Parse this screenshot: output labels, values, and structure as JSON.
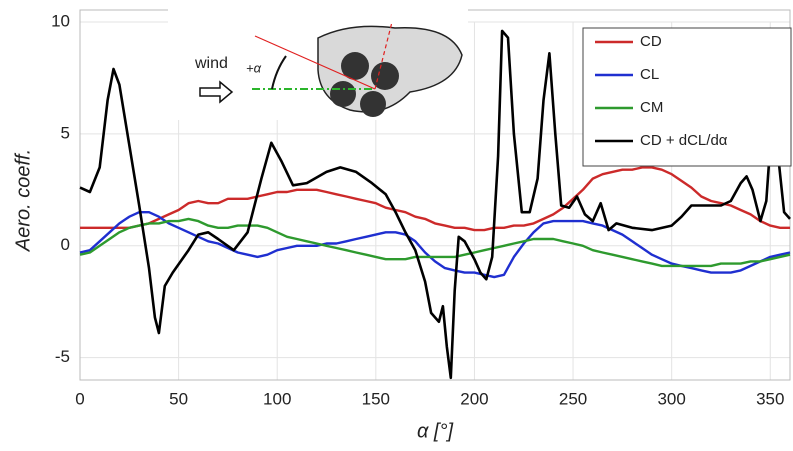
{
  "chart_data": {
    "type": "line",
    "x_label": "α [°]",
    "y_label": "Aero. coeff.",
    "xlim": [
      0,
      360
    ],
    "ylim": [
      -6,
      10
    ],
    "xticks": [
      0,
      50,
      100,
      150,
      200,
      250,
      300,
      350
    ],
    "yticks": [
      -5,
      0,
      5,
      10
    ],
    "grid": true,
    "legend": "upper right",
    "inset_labels": [
      "wind",
      "+α"
    ],
    "x": [
      0,
      5,
      10,
      15,
      20,
      25,
      30,
      35,
      40,
      45,
      50,
      55,
      60,
      65,
      70,
      75,
      80,
      85,
      90,
      95,
      100,
      105,
      110,
      115,
      120,
      125,
      130,
      135,
      140,
      145,
      150,
      155,
      160,
      165,
      170,
      175,
      180,
      185,
      190,
      195,
      200,
      205,
      210,
      215,
      220,
      225,
      230,
      235,
      240,
      245,
      250,
      255,
      260,
      265,
      270,
      275,
      280,
      285,
      290,
      295,
      300,
      305,
      310,
      315,
      320,
      325,
      330,
      335,
      340,
      345,
      350,
      355,
      360
    ],
    "series": [
      {
        "name": "CD",
        "color": "#cc2a2a",
        "values": [
          0.8,
          0.8,
          0.8,
          0.8,
          0.8,
          0.8,
          0.9,
          1.0,
          1.2,
          1.4,
          1.6,
          1.9,
          2.0,
          1.9,
          1.9,
          2.1,
          2.1,
          2.1,
          2.2,
          2.3,
          2.4,
          2.4,
          2.5,
          2.5,
          2.5,
          2.4,
          2.3,
          2.2,
          2.1,
          2.0,
          1.9,
          1.7,
          1.6,
          1.5,
          1.3,
          1.2,
          1.0,
          0.9,
          0.8,
          0.8,
          0.7,
          0.7,
          0.8,
          0.8,
          0.9,
          0.9,
          1.0,
          1.2,
          1.4,
          1.7,
          2.1,
          2.5,
          3.0,
          3.2,
          3.3,
          3.4,
          3.4,
          3.5,
          3.5,
          3.4,
          3.2,
          2.9,
          2.6,
          2.2,
          2.0,
          1.9,
          1.8,
          1.6,
          1.4,
          1.1,
          0.9,
          0.8,
          0.8
        ]
      },
      {
        "name": "CL",
        "color": "#1f2fd0",
        "values": [
          -0.3,
          -0.2,
          0.2,
          0.6,
          1.0,
          1.3,
          1.5,
          1.5,
          1.3,
          1.0,
          0.8,
          0.6,
          0.4,
          0.2,
          0.1,
          -0.1,
          -0.3,
          -0.4,
          -0.5,
          -0.4,
          -0.2,
          -0.1,
          0.0,
          0.0,
          0.0,
          0.1,
          0.1,
          0.2,
          0.3,
          0.4,
          0.5,
          0.6,
          0.6,
          0.5,
          0.2,
          -0.3,
          -0.7,
          -1.0,
          -1.1,
          -1.2,
          -1.2,
          -1.3,
          -1.4,
          -1.3,
          -0.5,
          0.1,
          0.6,
          1.0,
          1.1,
          1.1,
          1.1,
          1.1,
          1.0,
          0.9,
          0.7,
          0.5,
          0.2,
          -0.1,
          -0.4,
          -0.6,
          -0.8,
          -0.9,
          -1.0,
          -1.1,
          -1.2,
          -1.2,
          -1.2,
          -1.1,
          -0.9,
          -0.7,
          -0.5,
          -0.4,
          -0.3
        ]
      },
      {
        "name": "CM",
        "color": "#2e9a2e",
        "values": [
          -0.4,
          -0.3,
          0.0,
          0.3,
          0.6,
          0.8,
          0.9,
          1.0,
          1.0,
          1.1,
          1.1,
          1.2,
          1.1,
          0.9,
          0.8,
          0.8,
          0.9,
          0.9,
          0.9,
          0.8,
          0.6,
          0.4,
          0.3,
          0.2,
          0.1,
          0.0,
          -0.1,
          -0.2,
          -0.3,
          -0.4,
          -0.5,
          -0.6,
          -0.6,
          -0.6,
          -0.5,
          -0.5,
          -0.5,
          -0.5,
          -0.5,
          -0.4,
          -0.3,
          -0.2,
          -0.1,
          0.0,
          0.1,
          0.2,
          0.3,
          0.3,
          0.3,
          0.2,
          0.1,
          0.0,
          -0.2,
          -0.3,
          -0.4,
          -0.5,
          -0.6,
          -0.7,
          -0.8,
          -0.9,
          -0.9,
          -0.9,
          -0.9,
          -0.9,
          -0.9,
          -0.8,
          -0.8,
          -0.8,
          -0.7,
          -0.7,
          -0.6,
          -0.5,
          -0.4
        ]
      },
      {
        "name": "CD + dCL/dα",
        "color": "#000000",
        "x": [
          0,
          5,
          10,
          14,
          17,
          20,
          25,
          30,
          35,
          38,
          40,
          43,
          47,
          55,
          60,
          65,
          70,
          78,
          85,
          92,
          97,
          102,
          108,
          115,
          125,
          132,
          140,
          148,
          155,
          160,
          165,
          170,
          175,
          178,
          182,
          184,
          186,
          188,
          190,
          192,
          195,
          200,
          203,
          206,
          209,
          212,
          214,
          217,
          220,
          224,
          228,
          232,
          235,
          238,
          241,
          244,
          248,
          252,
          256,
          260,
          264,
          268,
          272,
          280,
          290,
          300,
          305,
          310,
          318,
          325,
          330,
          335,
          338,
          341,
          345,
          348,
          351,
          354,
          357,
          360
        ],
        "values": [
          2.6,
          2.4,
          3.5,
          6.5,
          7.9,
          7.2,
          4.5,
          1.8,
          -1.0,
          -3.2,
          -3.9,
          -1.8,
          -1.2,
          -0.2,
          0.5,
          0.6,
          0.3,
          -0.2,
          0.6,
          3.0,
          4.6,
          3.8,
          2.7,
          2.8,
          3.3,
          3.5,
          3.3,
          2.8,
          2.3,
          1.5,
          0.6,
          -0.2,
          -1.6,
          -3.0,
          -3.4,
          -2.7,
          -4.5,
          -5.9,
          -2.0,
          0.4,
          0.2,
          -0.6,
          -1.2,
          -1.5,
          -0.5,
          4.0,
          9.6,
          9.3,
          5.0,
          1.5,
          1.5,
          3.0,
          6.5,
          8.6,
          5.0,
          1.8,
          1.7,
          2.2,
          1.4,
          1.1,
          1.9,
          0.7,
          1.0,
          0.8,
          0.7,
          0.9,
          1.3,
          1.8,
          1.8,
          1.8,
          2.0,
          2.8,
          3.1,
          2.5,
          1.1,
          2.0,
          5.8,
          4.0,
          1.5,
          1.2
        ]
      }
    ]
  }
}
